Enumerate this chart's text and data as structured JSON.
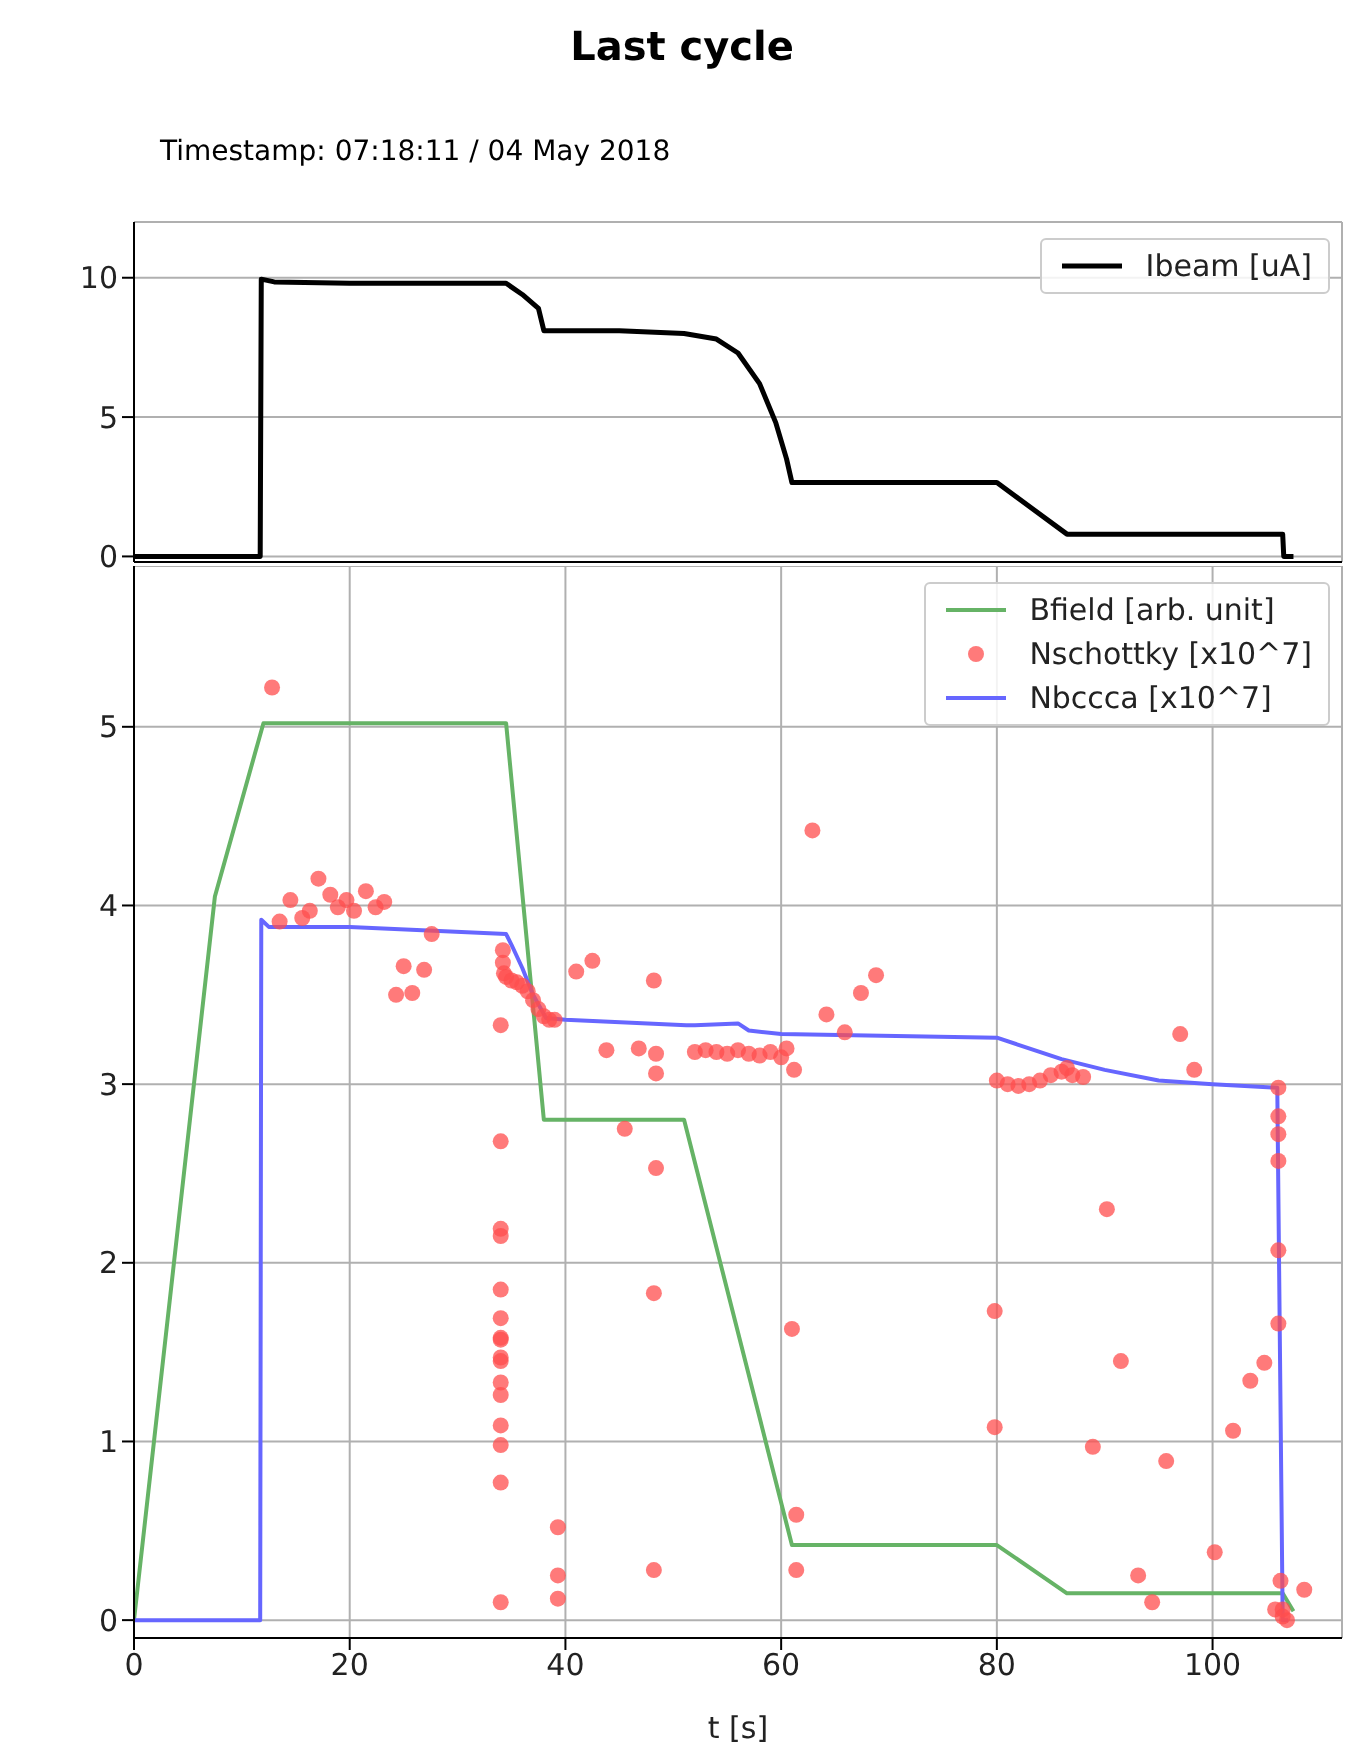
{
  "chart_data": [
    {
      "type": "line",
      "title": "Last cycle",
      "subtitle": "Timestamp: 07:18:11 / 04 May 2018",
      "xlim": [
        0,
        112
      ],
      "xticks": [
        0,
        20,
        40,
        60,
        80,
        100
      ],
      "ylim": [
        -0.2,
        12
      ],
      "yticks": [
        0,
        5,
        10
      ],
      "tick_labels": "y",
      "grid": true,
      "legend": "top right",
      "line_style": "solid",
      "marker": "none",
      "series": [
        {
          "name": "Ibeam [uA]",
          "color": "#000000",
          "x": [
            0,
            11.7,
            11.8,
            13,
            20,
            34.5,
            36,
            37.5,
            38,
            45,
            51,
            54,
            56,
            58,
            59.5,
            60.5,
            61,
            80,
            86.5,
            106.5,
            106.6,
            107.5
          ],
          "values": [
            0,
            0,
            9.95,
            9.85,
            9.8,
            9.8,
            9.4,
            8.9,
            8.1,
            8.1,
            8.0,
            7.8,
            7.3,
            6.2,
            4.8,
            3.5,
            2.65,
            2.65,
            0.8,
            0.8,
            0,
            0
          ]
        }
      ]
    },
    {
      "type": "line",
      "xlabel": "t [s]",
      "xlim": [
        0,
        112
      ],
      "xticks": [
        0,
        20,
        40,
        60,
        80,
        100
      ],
      "ylim": [
        -0.1,
        5.9
      ],
      "yticks": [
        0,
        1,
        2,
        3,
        4,
        5
      ],
      "grid": true,
      "legend": "top right",
      "line_style": "solid",
      "series": [
        {
          "name": "Bfield [arb. unit]",
          "marker": "none",
          "color": "#66b366",
          "x": [
            0,
            7.5,
            12,
            34.5,
            38,
            51,
            61,
            80,
            86.5,
            106.5,
            107.5
          ],
          "values": [
            0,
            4.05,
            5.02,
            5.02,
            2.8,
            2.8,
            0.42,
            0.42,
            0.15,
            0.15,
            0.05
          ]
        },
        {
          "name": "Nschottky [x10^7]",
          "type": "scatter",
          "marker": "circle",
          "color": "#ff4d4d",
          "x": [
            12.8,
            13.5,
            14.5,
            15.6,
            16.3,
            17.1,
            18.2,
            18.9,
            19.7,
            20.4,
            21.5,
            22.4,
            23.2,
            24.3,
            25.0,
            25.8,
            26.9,
            27.6,
            34.0,
            34.0,
            34.0,
            34.0,
            34.0,
            34.0,
            34.0,
            34.0,
            34.0,
            34.0,
            34.0,
            34.0,
            34.0,
            34.0,
            34.0,
            34.0,
            34.2,
            34.2,
            34.3,
            34.5,
            35,
            35.5,
            36,
            36.5,
            37,
            37.5,
            38,
            38.5,
            39,
            39.3,
            39.3,
            39.3,
            41.0,
            42.5,
            43.8,
            45.5,
            46.8,
            48.2,
            48.4,
            48.4,
            48.4,
            48.2,
            48.2,
            52,
            53,
            54,
            55,
            56,
            57,
            58,
            59,
            60,
            60.5,
            61.2,
            61.0,
            61.4,
            61.4,
            62.9,
            64.2,
            65.9,
            67.4,
            68.8,
            79.8,
            79.8,
            80,
            81,
            82,
            83,
            84,
            85,
            86,
            86.5,
            87,
            88,
            88.9,
            90.2,
            91.5,
            93.1,
            94.4,
            95.7,
            97.0,
            98.3,
            100.2,
            101.9,
            103.5,
            104.8,
            105.8,
            106.1,
            106.1,
            106.1,
            106.1,
            106.1,
            106.1,
            106.3,
            106.9,
            106.5,
            106.5,
            108.5
          ],
          "values": [
            5.22,
            3.91,
            4.03,
            3.93,
            3.97,
            4.15,
            4.06,
            3.99,
            4.03,
            3.97,
            4.08,
            3.99,
            4.02,
            3.5,
            3.66,
            3.51,
            3.64,
            3.84,
            3.33,
            2.68,
            2.19,
            2.15,
            1.85,
            1.69,
            1.58,
            1.57,
            1.47,
            1.45,
            1.33,
            1.26,
            1.09,
            0.98,
            0.77,
            0.1,
            3.75,
            3.68,
            3.62,
            3.6,
            3.58,
            3.57,
            3.55,
            3.52,
            3.47,
            3.42,
            3.38,
            3.36,
            3.36,
            0.52,
            0.25,
            0.12,
            3.63,
            3.69,
            3.19,
            2.75,
            3.2,
            3.58,
            3.17,
            3.06,
            2.53,
            1.83,
            0.28,
            3.18,
            3.19,
            3.18,
            3.17,
            3.19,
            3.17,
            3.16,
            3.18,
            3.15,
            3.2,
            3.08,
            1.63,
            0.59,
            0.28,
            4.42,
            3.39,
            3.29,
            3.51,
            3.61,
            1.73,
            1.08,
            3.02,
            3.0,
            2.99,
            3.0,
            3.02,
            3.05,
            3.07,
            3.09,
            3.05,
            3.04,
            0.97,
            2.3,
            1.45,
            0.25,
            0.1,
            0.89,
            3.28,
            3.08,
            0.38,
            1.06,
            1.34,
            1.44,
            0.06,
            2.98,
            2.82,
            2.72,
            2.57,
            2.07,
            1.66,
            0.22,
            0.0,
            0.06,
            0.02,
            0.17
          ]
        },
        {
          "name": "Nbccca [x10^7]",
          "marker": "none",
          "color": "#6666ff",
          "x": [
            0,
            11.7,
            11.8,
            12.5,
            20,
            34.5,
            35,
            36,
            37,
            38.2,
            40,
            51.2,
            52,
            56,
            57,
            60,
            80,
            82,
            86,
            90,
            95,
            100,
            106,
            106.5,
            107
          ],
          "values": [
            0,
            0,
            3.92,
            3.88,
            3.88,
            3.84,
            3.78,
            3.65,
            3.5,
            3.37,
            3.36,
            3.33,
            3.33,
            3.34,
            3.3,
            3.28,
            3.26,
            3.22,
            3.14,
            3.08,
            3.02,
            3.0,
            2.98,
            0,
            0
          ]
        }
      ]
    }
  ]
}
